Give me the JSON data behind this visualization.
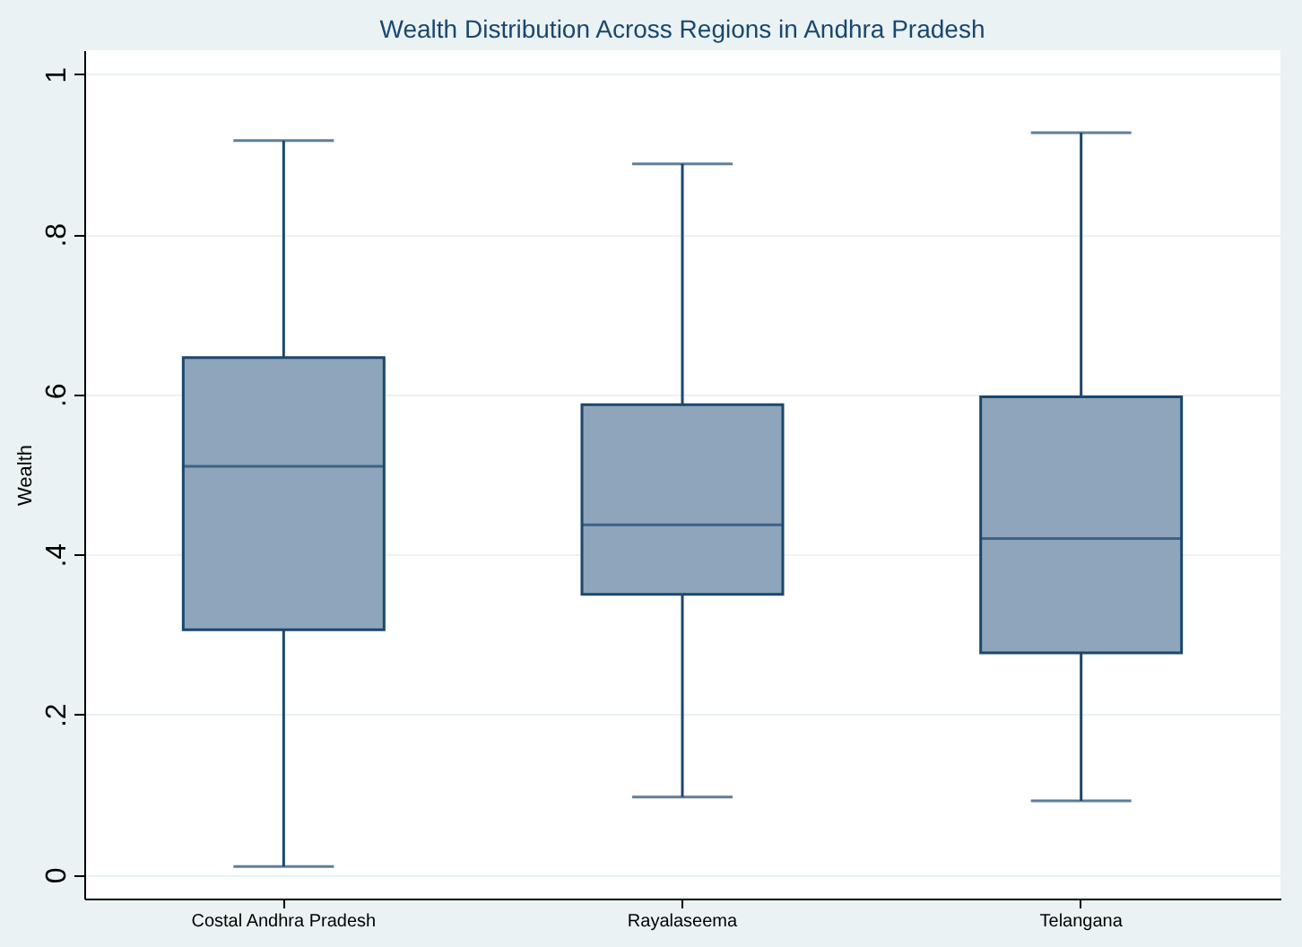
{
  "chart_data": {
    "type": "box",
    "title": "Wealth Distribution Across Regions in Andhra Pradesh",
    "ylabel": "Wealth",
    "categories": [
      "Costal Andhra Pradesh",
      "Rayalaseema",
      "Telangana"
    ],
    "series": [
      {
        "color": "#8ea5bb",
        "boxes": [
          {
            "low": 0.01,
            "q1": 0.306,
            "median": 0.51,
            "q3": 0.646,
            "high": 0.917
          },
          {
            "low": 0.097,
            "q1": 0.35,
            "median": 0.437,
            "q3": 0.587,
            "high": 0.888
          },
          {
            "low": 0.092,
            "q1": 0.277,
            "median": 0.42,
            "q3": 0.597,
            "high": 0.927
          }
        ]
      }
    ],
    "ylim": [
      -0.03,
      1.03
    ],
    "yticks": [
      {
        "value": 0,
        "label": "0"
      },
      {
        "value": 0.2,
        "label": ".2"
      },
      {
        "value": 0.4,
        "label": ".4"
      },
      {
        "value": 0.6,
        "label": ".6"
      },
      {
        "value": 0.8,
        "label": ".8"
      },
      {
        "value": 1,
        "label": "1"
      }
    ],
    "grid": "y",
    "legend": false
  }
}
